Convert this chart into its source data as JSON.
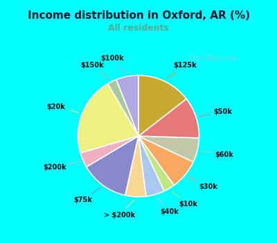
{
  "title": "Income distribution in Oxford, AR (%)",
  "subtitle": "All residents",
  "title_color": "#1a1a2e",
  "subtitle_color": "#5ba890",
  "background_outer": "#00ffff",
  "background_inner_tl": "#d0ede0",
  "background_inner_br": "#c8e8f8",
  "watermark": "City-Data.com",
  "labels": [
    "$100k",
    "$150k",
    "$20k",
    "$200k",
    "$75k",
    "> $200k",
    "$40k",
    "$10k",
    "$30k",
    "$60k",
    "$50k",
    "$125k"
  ],
  "values": [
    6.0,
    2.5,
    21.0,
    4.0,
    13.0,
    5.5,
    5.0,
    3.0,
    8.0,
    6.5,
    11.0,
    14.5
  ],
  "colors": [
    "#b0a8e0",
    "#a8c8a0",
    "#f0f080",
    "#f0b0c0",
    "#8888cc",
    "#f8d890",
    "#a8c8f0",
    "#c0e880",
    "#f8a860",
    "#c0c8a8",
    "#e87878",
    "#c8a830"
  ],
  "startangle": 90,
  "label_fontsize": 7.0
}
